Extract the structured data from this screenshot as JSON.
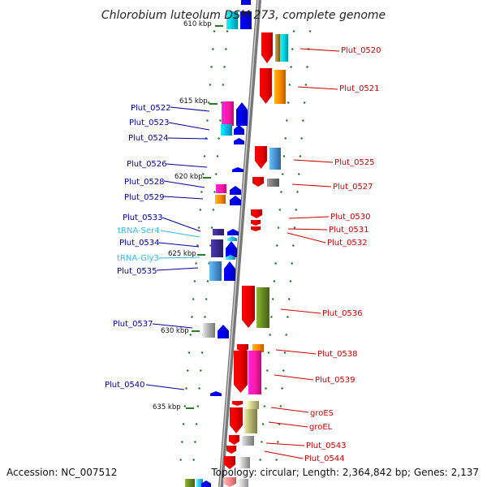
{
  "title": "Chlorobium luteolum DSM 273, complete genome",
  "footer": {
    "accession": "Accession: NC_007512",
    "summary": "Topology: circular; Length: 2,364,842 bp; Genes: 2,137"
  },
  "colors": {
    "left_label": "#000099",
    "right_label": "#cc0000",
    "trna_label": "#33bbee",
    "backbone": "#888888",
    "tick": "#2a7a2a"
  },
  "scale_labels": [
    {
      "text": "610 kbp"
    },
    {
      "text": "615 kbp"
    },
    {
      "text": "620 kbp"
    },
    {
      "text": "625 kbp"
    },
    {
      "text": "630 kbp"
    },
    {
      "text": "635 kbp"
    }
  ],
  "left_labels": [
    {
      "text": "Plut_0522",
      "type": "gene"
    },
    {
      "text": "Plut_0523",
      "type": "gene"
    },
    {
      "text": "Plut_0524",
      "type": "gene"
    },
    {
      "text": "Plut_0526",
      "type": "gene"
    },
    {
      "text": "Plut_0528",
      "type": "gene"
    },
    {
      "text": "Plut_0529",
      "type": "gene"
    },
    {
      "text": "Plut_0533",
      "type": "gene"
    },
    {
      "text": "tRNA-Ser4",
      "type": "trna"
    },
    {
      "text": "Plut_0534",
      "type": "gene"
    },
    {
      "text": "tRNA-Gly3",
      "type": "trna"
    },
    {
      "text": "Plut_0535",
      "type": "gene"
    },
    {
      "text": "Plut_0537",
      "type": "gene"
    },
    {
      "text": "Plut_0540",
      "type": "gene"
    }
  ],
  "right_labels": [
    {
      "text": "Plut_0520"
    },
    {
      "text": "Plut_0521"
    },
    {
      "text": "Plut_0525"
    },
    {
      "text": "Plut_0527"
    },
    {
      "text": "Plut_0530"
    },
    {
      "text": "Plut_0531"
    },
    {
      "text": "Plut_0532"
    },
    {
      "text": "Plut_0536"
    },
    {
      "text": "Plut_0538"
    },
    {
      "text": "Plut_0539"
    },
    {
      "text": "groES"
    },
    {
      "text": "groEL"
    },
    {
      "text": "Plut_0543"
    },
    {
      "text": "Plut_0544"
    }
  ]
}
